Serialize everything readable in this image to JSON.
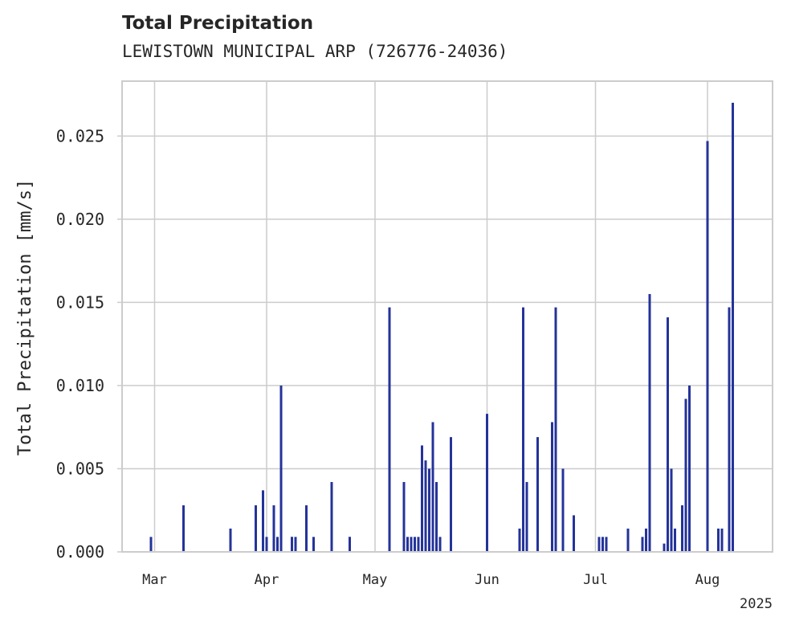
{
  "title": "Total Precipitation",
  "subtitle": "LEWISTOWN MUNICIPAL ARP (726776-24036)",
  "colors": {
    "bar": "#24339a",
    "grid": "#cccccc",
    "axes": "#cccccc",
    "text": "#262626"
  },
  "chart_data": {
    "type": "bar",
    "title": "Total Precipitation",
    "subtitle": "LEWISTOWN MUNICIPAL ARP (726776-24036)",
    "ylabel": "Total Precipitation [mm/s]",
    "xlabel": "",
    "x_offset_label": "2025",
    "xlim": [
      "2025-02-20",
      "2025-08-19"
    ],
    "ylim": [
      0,
      0.0283
    ],
    "yticks": [
      0.0,
      0.005,
      0.01,
      0.015,
      0.02,
      0.025
    ],
    "ytick_labels": [
      "0.000",
      "0.005",
      "0.010",
      "0.015",
      "0.020",
      "0.025"
    ],
    "xticks": [
      "2025-03-01",
      "2025-04-01",
      "2025-05-01",
      "2025-06-01",
      "2025-07-01",
      "2025-08-01"
    ],
    "xtick_labels": [
      "Mar",
      "Apr",
      "May",
      "Jun",
      "Jul",
      "Aug"
    ],
    "grid": true,
    "legend": "none",
    "series": [
      {
        "x": [
          "2025-02-28",
          "2025-03-09",
          "2025-03-09",
          "2025-03-22",
          "2025-03-22",
          "2025-03-29",
          "2025-03-29",
          "2025-03-31",
          "2025-03-31",
          "2025-04-01",
          "2025-04-03",
          "2025-04-03",
          "2025-04-04",
          "2025-04-05",
          "2025-04-08",
          "2025-04-08",
          "2025-04-09",
          "2025-04-12",
          "2025-04-12",
          "2025-04-14",
          "2025-04-19",
          "2025-04-24",
          "2025-04-24",
          "2025-05-05",
          "2025-05-05",
          "2025-05-09",
          "2025-05-10",
          "2025-05-11",
          "2025-05-12",
          "2025-05-13",
          "2025-05-14",
          "2025-05-14",
          "2025-05-15",
          "2025-05-15",
          "2025-05-16",
          "2025-05-17",
          "2025-05-17",
          "2025-05-18",
          "2025-05-19",
          "2025-05-22",
          "2025-05-22",
          "2025-06-01",
          "2025-06-01",
          "2025-06-10",
          "2025-06-11",
          "2025-06-11",
          "2025-06-12",
          "2025-06-15",
          "2025-06-15",
          "2025-06-19",
          "2025-06-20",
          "2025-06-20",
          "2025-06-22",
          "2025-06-25",
          "2025-07-02",
          "2025-07-03",
          "2025-07-04",
          "2025-07-10",
          "2025-07-14",
          "2025-07-15",
          "2025-07-16",
          "2025-07-20",
          "2025-07-21",
          "2025-07-22",
          "2025-07-23",
          "2025-07-25",
          "2025-07-26",
          "2025-07-26",
          "2025-07-27",
          "2025-08-01",
          "2025-08-04",
          "2025-08-05",
          "2025-08-07",
          "2025-08-07",
          "2025-08-08",
          "2025-08-08"
        ],
        "y": [
          0.0009,
          0.0028,
          0.0009,
          0.0009,
          0.0014,
          0.0028,
          0.0009,
          0.0028,
          0.0037,
          0.0009,
          0.0028,
          0.0009,
          0.0009,
          0.01,
          0.0009,
          0.0009,
          0.0009,
          0.0009,
          0.0028,
          0.0009,
          0.0042,
          0.0009,
          0.0009,
          0.0128,
          0.0147,
          0.0042,
          0.0009,
          0.0009,
          0.0009,
          0.0009,
          0.0064,
          0.0037,
          0.0055,
          0.0009,
          0.005,
          0.0078,
          0.0014,
          0.0042,
          0.0009,
          0.0055,
          0.0069,
          0.0055,
          0.0083,
          0.0014,
          0.0147,
          0.0078,
          0.0042,
          0.005,
          0.0069,
          0.0078,
          0.0147,
          0.0083,
          0.005,
          0.0022,
          0.0009,
          0.0009,
          0.0009,
          0.0014,
          0.0009,
          0.0014,
          0.0155,
          0.0005,
          0.0141,
          0.005,
          0.0014,
          0.0028,
          0.0092,
          0.0064,
          0.01,
          0.0247,
          0.0014,
          0.0014,
          0.0147,
          0.0147,
          0.027,
          0.0009
        ]
      }
    ]
  }
}
